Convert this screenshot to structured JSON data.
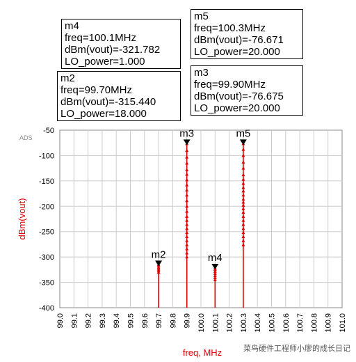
{
  "chart_data": {
    "type": "stem",
    "brand": "ADS",
    "xlabel": "freq, MHz",
    "ylabel": "dBm(vout)",
    "xlim": [
      99.0,
      101.0
    ],
    "ylim": [
      -400,
      -50
    ],
    "x_ticks": [
      "99.0",
      "99.1",
      "99.2",
      "99.3",
      "99.4",
      "99.5",
      "99.6",
      "99.7",
      "99.8",
      "99.9",
      "100.0",
      "100.1",
      "100.2",
      "100.3",
      "100.4",
      "100.5",
      "100.6",
      "100.7",
      "100.8",
      "100.9",
      "101.0"
    ],
    "y_ticks": [
      "-50",
      "-100",
      "-150",
      "-200",
      "-250",
      "-300",
      "-350",
      "-400"
    ],
    "line_color": "#e00000",
    "series": [
      {
        "x": 99.7,
        "top": -315.44,
        "points": [
          -315.44,
          -318,
          -321,
          -324,
          -327,
          -330
        ]
      },
      {
        "x": 99.9,
        "top": -76.675,
        "points": [
          -76.675,
          -90,
          -103,
          -115,
          -128,
          -137,
          -148,
          -158,
          -168,
          -178,
          -189,
          -200,
          -210,
          -220,
          -228,
          -236,
          -244,
          -252,
          -260,
          -268,
          -276,
          -284,
          -292,
          -300
        ]
      },
      {
        "x": 100.1,
        "top": -321.782,
        "points": [
          -321.782,
          -325,
          -329,
          -333,
          -337,
          -341,
          -345
        ]
      },
      {
        "x": 100.3,
        "top": -76.671,
        "points": [
          -76.671,
          -88,
          -100,
          -113,
          -125,
          -138,
          -147,
          -155,
          -163,
          -170,
          -178,
          -186,
          -192,
          -198,
          -205,
          -212,
          -220,
          -228,
          -236,
          -244,
          -252,
          -260,
          -268,
          -276
        ]
      }
    ],
    "markers": [
      {
        "id": "m2",
        "x": 99.7,
        "y": -315.44
      },
      {
        "id": "m3",
        "x": 99.9,
        "y": -76.675
      },
      {
        "id": "m4",
        "x": 100.1,
        "y": -321.782
      },
      {
        "id": "m5",
        "x": 100.3,
        "y": -76.671
      }
    ]
  },
  "readouts": {
    "m4": {
      "name": "m4",
      "freq": "freq=100.1MHz",
      "dbm": "dBm(vout)=-321.782",
      "lo": "LO_power=1.000"
    },
    "m2": {
      "name": "m2",
      "freq": "freq=99.70MHz",
      "dbm": "dBm(vout)=-315.440",
      "lo": "LO_power=18.000"
    },
    "m5": {
      "name": "m5",
      "freq": "freq=100.3MHz",
      "dbm": "dBm(vout)=-76.671",
      "lo": "LO_power=20.000"
    },
    "m3": {
      "name": "m3",
      "freq": "freq=99.90MHz",
      "dbm": "dBm(vout)=-76.675",
      "lo": "LO_power=20.000"
    }
  },
  "watermark": "菜鸟硬件工程师小廖的成长日记"
}
